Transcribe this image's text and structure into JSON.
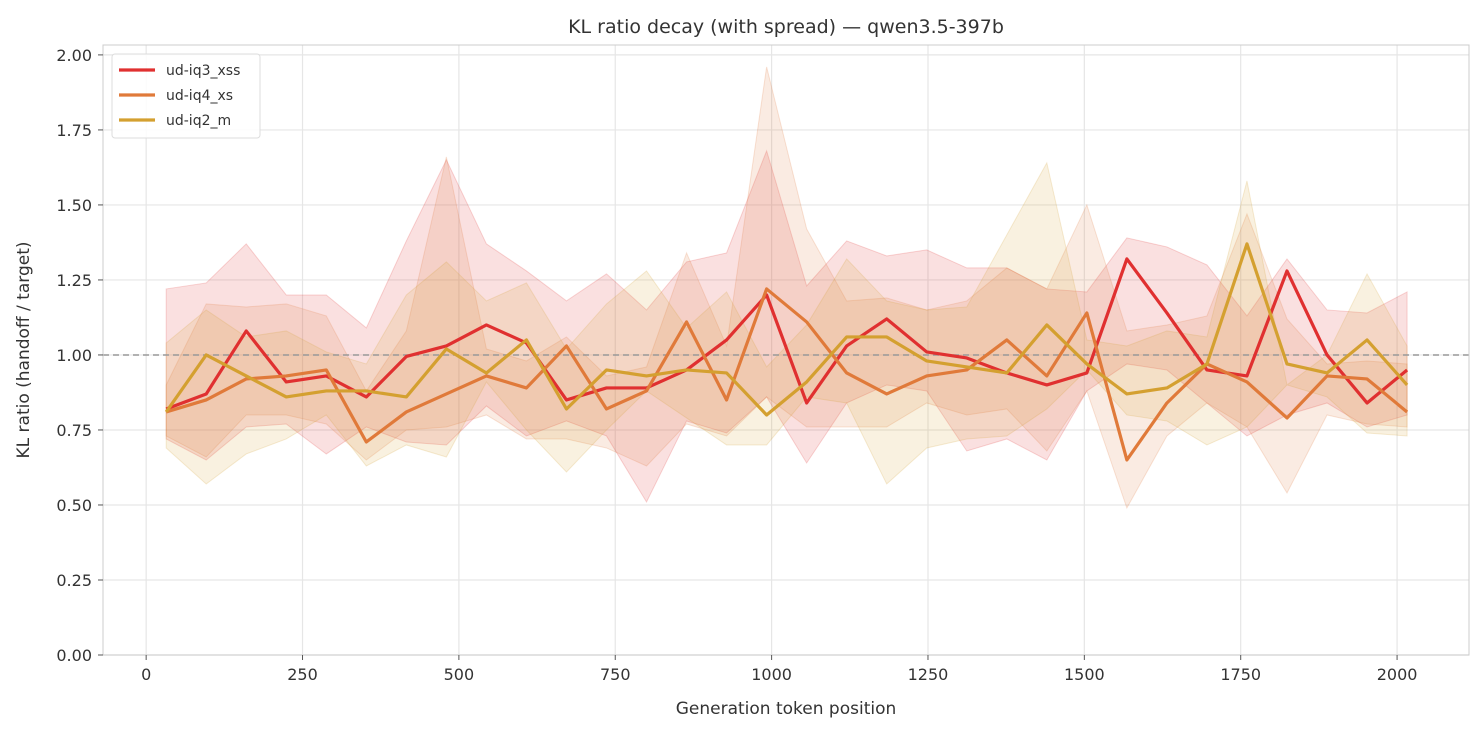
{
  "chart_data": {
    "type": "line",
    "title": "KL ratio decay (with spread) — qwen3.5-397b",
    "xlabel": "Generation token position",
    "ylabel": "KL ratio (handoff / target)",
    "xlim": [
      -69,
      2115
    ],
    "ylim": [
      0,
      2.033
    ],
    "xticks": [
      0,
      250,
      500,
      750,
      1000,
      1250,
      1500,
      1750,
      2000
    ],
    "xtick_labels": [
      "0",
      "250",
      "500",
      "750",
      "1000",
      "1250",
      "1500",
      "1750",
      "2000"
    ],
    "yticks": [
      0,
      0.25,
      0.5,
      0.75,
      1.0,
      1.25,
      1.5,
      1.75,
      2.0
    ],
    "ytick_labels": [
      "0.00",
      "0.25",
      "0.50",
      "0.75",
      "1.00",
      "1.25",
      "1.50",
      "1.75",
      "2.00"
    ],
    "grid": true,
    "reference_line": 1.0,
    "legend_position": "top-left",
    "x": [
      32,
      96,
      160,
      224,
      288,
      352,
      416,
      480,
      544,
      608,
      672,
      736,
      800,
      864,
      928,
      992,
      1056,
      1120,
      1184,
      1248,
      1312,
      1376,
      1440,
      1504,
      1568,
      1632,
      1696,
      1760,
      1824,
      1888,
      1952,
      2016
    ],
    "series": [
      {
        "name": "ud-iq3_xss",
        "color": "#e03030",
        "values": [
          0.82,
          0.87,
          1.08,
          0.91,
          0.93,
          0.86,
          0.995,
          1.03,
          1.1,
          1.04,
          0.85,
          0.89,
          0.89,
          0.95,
          1.05,
          1.2,
          0.84,
          1.03,
          1.12,
          1.01,
          0.99,
          0.94,
          0.9,
          0.94,
          1.32,
          1.14,
          0.95,
          0.93,
          1.28,
          1.0,
          0.84,
          0.95
        ],
        "upper": [
          1.22,
          1.24,
          1.37,
          1.2,
          1.2,
          1.09,
          1.38,
          1.65,
          1.37,
          1.28,
          1.18,
          1.27,
          1.15,
          1.31,
          1.34,
          1.68,
          1.23,
          1.38,
          1.33,
          1.35,
          1.29,
          1.29,
          1.22,
          1.21,
          1.39,
          1.36,
          1.3,
          1.13,
          1.32,
          1.15,
          1.14,
          1.21
        ],
        "lower": [
          0.72,
          0.65,
          0.76,
          0.77,
          0.67,
          0.76,
          0.71,
          0.7,
          0.83,
          0.73,
          0.78,
          0.73,
          0.51,
          0.78,
          0.74,
          0.86,
          0.64,
          0.84,
          0.9,
          0.88,
          0.68,
          0.72,
          0.65,
          0.88,
          0.97,
          0.95,
          0.84,
          0.73,
          0.8,
          0.84,
          0.76,
          0.8
        ]
      },
      {
        "name": "ud-iq4_xs",
        "color": "#e07a3a",
        "values": [
          0.81,
          0.85,
          0.92,
          0.93,
          0.95,
          0.71,
          0.81,
          0.87,
          0.93,
          0.89,
          1.03,
          0.82,
          0.88,
          1.11,
          0.85,
          1.22,
          1.11,
          0.94,
          0.87,
          0.93,
          0.95,
          1.05,
          0.93,
          1.14,
          0.65,
          0.84,
          0.97,
          0.91,
          0.79,
          0.93,
          0.92,
          0.81
        ],
        "upper": [
          0.9,
          1.17,
          1.16,
          1.17,
          1.13,
          0.88,
          1.08,
          1.66,
          1.02,
          0.98,
          1.06,
          0.93,
          0.96,
          1.34,
          1.03,
          1.96,
          1.42,
          1.18,
          1.19,
          1.15,
          1.18,
          1.29,
          1.22,
          1.5,
          1.08,
          1.1,
          1.13,
          1.47,
          1.12,
          0.97,
          0.98,
          0.97
        ],
        "lower": [
          0.73,
          0.66,
          0.8,
          0.8,
          0.77,
          0.65,
          0.75,
          0.76,
          0.8,
          0.72,
          0.72,
          0.69,
          0.63,
          0.77,
          0.73,
          0.86,
          0.76,
          0.76,
          0.76,
          0.84,
          0.8,
          0.82,
          0.68,
          0.88,
          0.49,
          0.73,
          0.84,
          0.76,
          0.54,
          0.8,
          0.77,
          0.76
        ]
      },
      {
        "name": "ud-iq2_m",
        "color": "#d4a030",
        "values": [
          0.81,
          1.0,
          0.93,
          0.86,
          0.88,
          0.88,
          0.86,
          1.02,
          0.94,
          1.05,
          0.82,
          0.95,
          0.93,
          0.95,
          0.94,
          0.8,
          0.91,
          1.06,
          1.06,
          0.98,
          0.96,
          0.94,
          1.1,
          0.97,
          0.87,
          0.89,
          0.97,
          1.37,
          0.97,
          0.94,
          1.05,
          0.9
        ],
        "upper": [
          1.04,
          1.15,
          1.06,
          1.08,
          1.01,
          0.97,
          1.2,
          1.31,
          1.18,
          1.24,
          1.02,
          1.17,
          1.28,
          1.09,
          1.21,
          0.96,
          1.1,
          1.32,
          1.18,
          1.15,
          1.16,
          1.4,
          1.64,
          1.05,
          1.03,
          1.08,
          1.06,
          1.58,
          0.9,
          1.0,
          1.27,
          1.03
        ],
        "lower": [
          0.69,
          0.57,
          0.67,
          0.72,
          0.8,
          0.63,
          0.7,
          0.66,
          0.91,
          0.75,
          0.61,
          0.75,
          0.88,
          0.79,
          0.7,
          0.7,
          0.86,
          0.84,
          0.57,
          0.69,
          0.72,
          0.73,
          0.82,
          0.95,
          0.8,
          0.78,
          0.7,
          0.76,
          0.9,
          0.86,
          0.74,
          0.73
        ]
      }
    ]
  }
}
